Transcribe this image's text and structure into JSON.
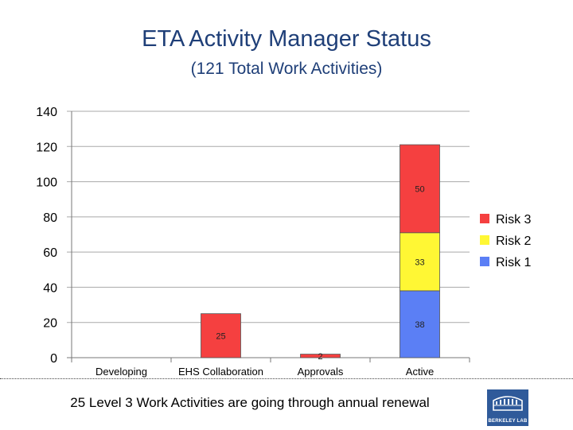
{
  "chart_data": {
    "type": "bar",
    "stacked": true,
    "title": "ETA Activity Manager Status",
    "subtitle": "(121 Total Work Activities)",
    "categories": [
      "Developing",
      "EHS Collaboration",
      "Approvals",
      "Active"
    ],
    "series": [
      {
        "name": "Risk 1",
        "color": "#5b7ff5",
        "values": [
          0,
          0,
          0,
          38
        ]
      },
      {
        "name": "Risk 2",
        "color": "#fff734",
        "values": [
          0,
          0,
          0,
          33
        ]
      },
      {
        "name": "Risk 3",
        "color": "#f54040",
        "values": [
          0,
          25,
          2,
          50
        ]
      }
    ],
    "data_labels": [
      {
        "category": "EHS Collaboration",
        "series": "Risk 3",
        "text": "25"
      },
      {
        "category": "Approvals",
        "series": "Risk 3",
        "text": "2"
      },
      {
        "category": "Active",
        "series": "Risk 1",
        "text": "38"
      },
      {
        "category": "Active",
        "series": "Risk 2",
        "text": "33"
      },
      {
        "category": "Active",
        "series": "Risk 3",
        "text": "50"
      }
    ],
    "ylim": [
      0,
      140
    ],
    "yticks": [
      0,
      20,
      40,
      60,
      80,
      100,
      120,
      140
    ],
    "grid": true,
    "legend_position": "right",
    "legend_order": [
      "Risk 3",
      "Risk 2",
      "Risk 1"
    ]
  },
  "footnote": "25 Level 3 Work Activities are going through annual renewal",
  "logo_text": "BERKELEY LAB"
}
